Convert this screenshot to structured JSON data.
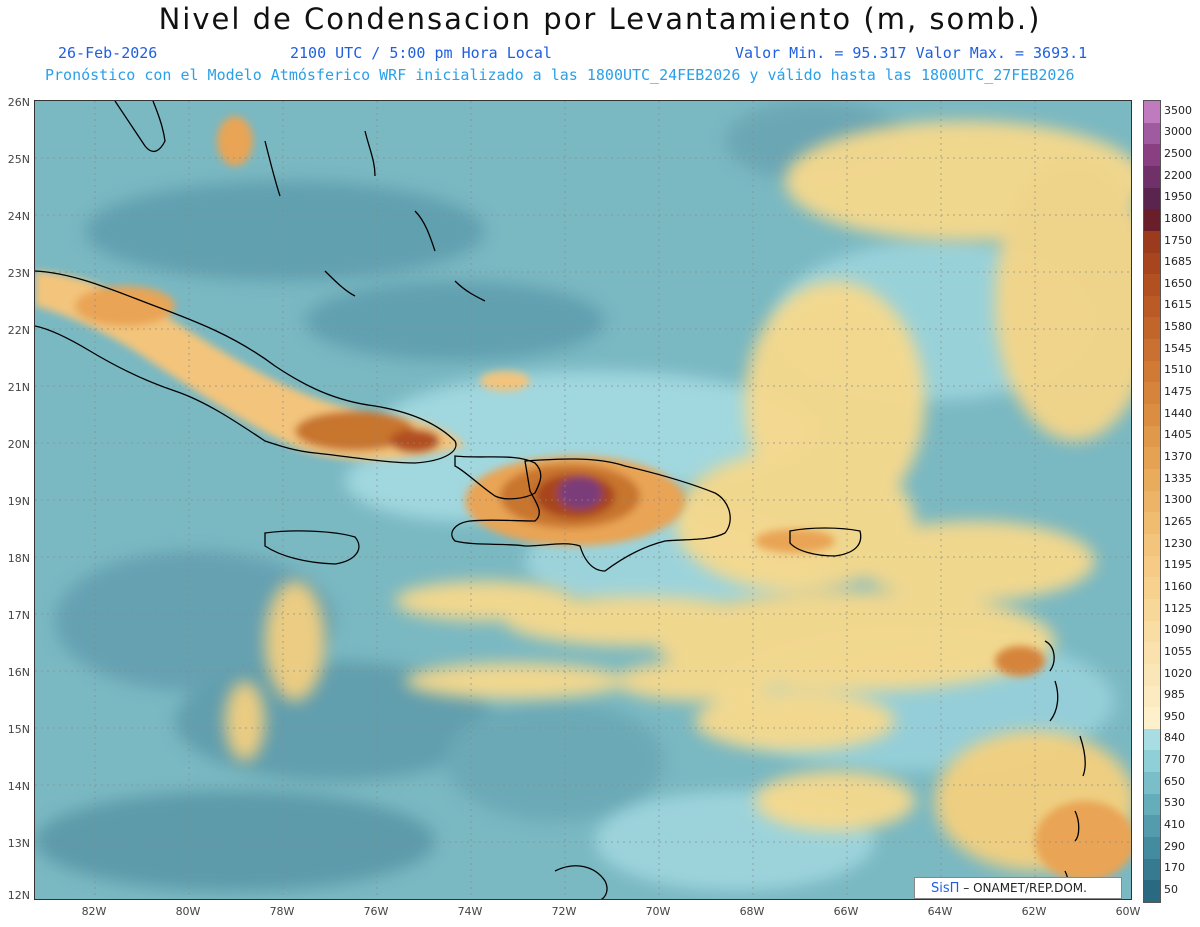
{
  "header": {
    "title": "Nivel de Condensacion por Levantamiento (m, somb.)",
    "date": "26-Feb-2026",
    "time": "2100 UTC / 5:00 pm Hora Local",
    "minmax": "Valor Min. = 95.317  Valor Max. = 3693.1",
    "model_info": "Pronóstico con el Modelo Atmósferico WRF inicializado a las 1800UTC_24FEB2026 y válido hasta las  1800UTC_27FEB2026"
  },
  "map": {
    "lat_labels": [
      "26N",
      "25N",
      "24N",
      "23N",
      "22N",
      "21N",
      "20N",
      "19N",
      "18N",
      "17N",
      "16N",
      "15N",
      "14N",
      "13N",
      "12N"
    ],
    "lon_labels": [
      "82W",
      "80W",
      "78W",
      "76W",
      "74W",
      "72W",
      "70W",
      "68W",
      "66W",
      "64W",
      "62W",
      "60W"
    ],
    "colors": {
      "ocean_base": "#7ab8c2",
      "deep": "#4f8ea0",
      "pale": "#a8dde4",
      "warm": "#f7d98c",
      "orange": "#e9a455",
      "brown": "#c06a2c",
      "purple": "#7a3d7a",
      "coast": "#000000"
    }
  },
  "colorbar": {
    "labels": [
      "3500",
      "3000",
      "2500",
      "2200",
      "1950",
      "1800",
      "1750",
      "1685",
      "1650",
      "1615",
      "1580",
      "1545",
      "1510",
      "1475",
      "1440",
      "1405",
      "1370",
      "1335",
      "1300",
      "1265",
      "1230",
      "1195",
      "1160",
      "1125",
      "1090",
      "1055",
      "1020",
      "985",
      "950",
      "840",
      "770",
      "650",
      "530",
      "410",
      "290",
      "170",
      "50"
    ],
    "colors": [
      "#c07bbf",
      "#a05aa0",
      "#8a3f82",
      "#70306a",
      "#5a2350",
      "#6a1e2a",
      "#9c3a1e",
      "#a8451f",
      "#b25022",
      "#bb5a26",
      "#c2652a",
      "#ca7030",
      "#d07a35",
      "#d6843b",
      "#db8e42",
      "#e0984a",
      "#e5a253",
      "#e9ab5c",
      "#edb366",
      "#f0bc70",
      "#f3c47b",
      "#f5cb85",
      "#f7d28f",
      "#f8d899",
      "#f9dda3",
      "#fae1ad",
      "#fbe6b7",
      "#fcebc0",
      "#fdf0ca",
      "#a8dde4",
      "#8fcfd7",
      "#79bec9",
      "#66adbb",
      "#549cad",
      "#438b9e",
      "#357a8f",
      "#2a6a80"
    ]
  },
  "credit": {
    "logo": "SisΠ",
    "text": "– ONAMET/REP.DOM."
  }
}
